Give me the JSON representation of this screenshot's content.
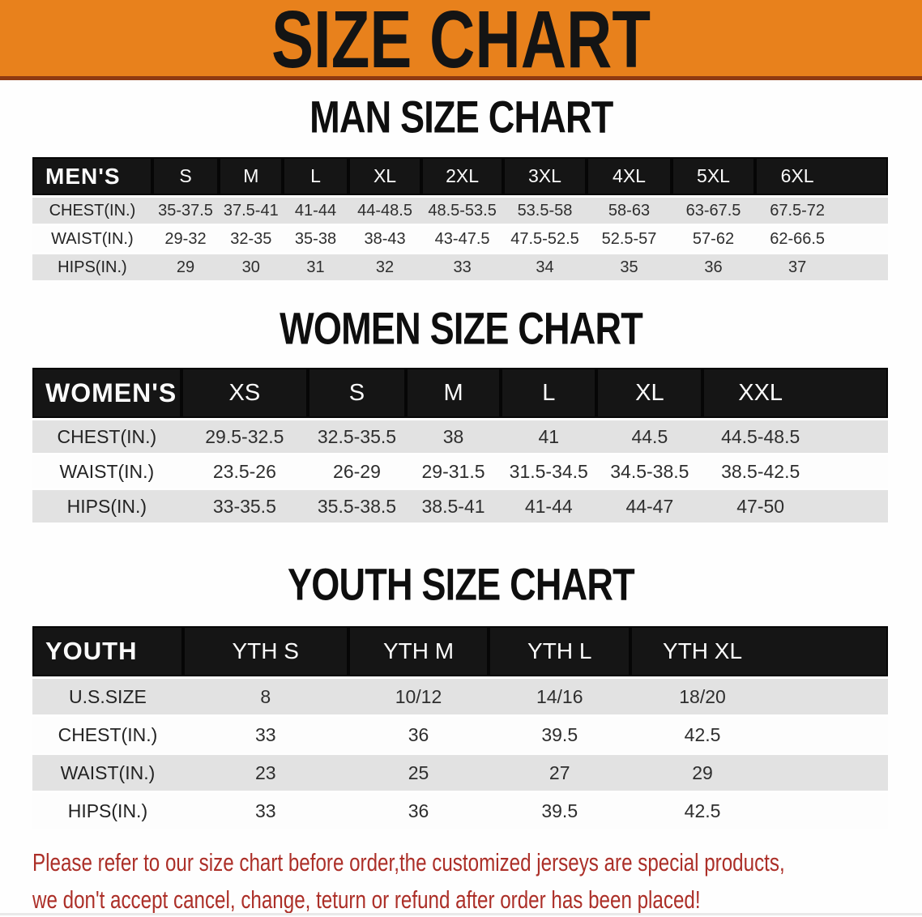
{
  "banner": {
    "title": "SIZE CHART",
    "bg_color": "#E8811C",
    "edge_color": "#8E3A12",
    "text_color": "#141414"
  },
  "sections": [
    {
      "id": "men",
      "heading": "MAN SIZE CHART",
      "header_label": "MEN'S",
      "sizes": [
        "S",
        "M",
        "L",
        "XL",
        "2XL",
        "3XL",
        "4XL",
        "5XL",
        "6XL"
      ],
      "rows": [
        {
          "label": "CHEST(IN.)",
          "values": [
            "35-37.5",
            "37.5-41",
            "41-44",
            "44-48.5",
            "48.5-53.5",
            "53.5-58",
            "58-63",
            "63-67.5",
            "67.5-72"
          ]
        },
        {
          "label": "WAIST(IN.)",
          "values": [
            "29-32",
            "32-35",
            "35-38",
            "38-43",
            "43-47.5",
            "47.5-52.5",
            "52.5-57",
            "57-62",
            "62-66.5"
          ]
        },
        {
          "label": "HIPS(IN.)",
          "values": [
            "29",
            "30",
            "31",
            "32",
            "33",
            "34",
            "35",
            "36",
            "37"
          ]
        }
      ]
    },
    {
      "id": "women",
      "heading": "WOMEN SIZE CHART",
      "header_label": "WOMEN'S",
      "sizes": [
        "XS",
        "S",
        "M",
        "L",
        "XL",
        "XXL"
      ],
      "rows": [
        {
          "label": "CHEST(IN.)",
          "values": [
            "29.5-32.5",
            "32.5-35.5",
            "38",
            "41",
            "44.5",
            "44.5-48.5"
          ]
        },
        {
          "label": "WAIST(IN.)",
          "values": [
            "23.5-26",
            "26-29",
            "29-31.5",
            "31.5-34.5",
            "34.5-38.5",
            "38.5-42.5"
          ]
        },
        {
          "label": "HIPS(IN.)",
          "values": [
            "33-35.5",
            "35.5-38.5",
            "38.5-41",
            "41-44",
            "44-47",
            "47-50"
          ]
        }
      ]
    },
    {
      "id": "youth",
      "heading": "YOUTH SIZE CHART",
      "header_label": "YOUTH",
      "sizes": [
        "YTH S",
        "YTH M",
        "YTH L",
        "YTH XL"
      ],
      "rows": [
        {
          "label": "U.S.SIZE",
          "values": [
            "8",
            "10/12",
            "14/16",
            "18/20"
          ]
        },
        {
          "label": "CHEST(IN.)",
          "values": [
            "33",
            "36",
            "39.5",
            "42.5"
          ]
        },
        {
          "label": "WAIST(IN.)",
          "values": [
            "23",
            "25",
            "27",
            "29"
          ]
        },
        {
          "label": "HIPS(IN.)",
          "values": [
            "33",
            "36",
            "39.5",
            "42.5"
          ]
        }
      ]
    }
  ],
  "disclaimer": {
    "color": "#AC2F28",
    "line1": "Please refer to our size chart before order,the customized jerseys are special products,",
    "line2": "we don't accept cancel, change, teturn or refund after order has been placed!"
  },
  "colors": {
    "table_header_bg": "#151515",
    "row_gray": "#E2E2E2",
    "row_white": "#FDFDFD",
    "cell_text": "#2E2E2E"
  }
}
